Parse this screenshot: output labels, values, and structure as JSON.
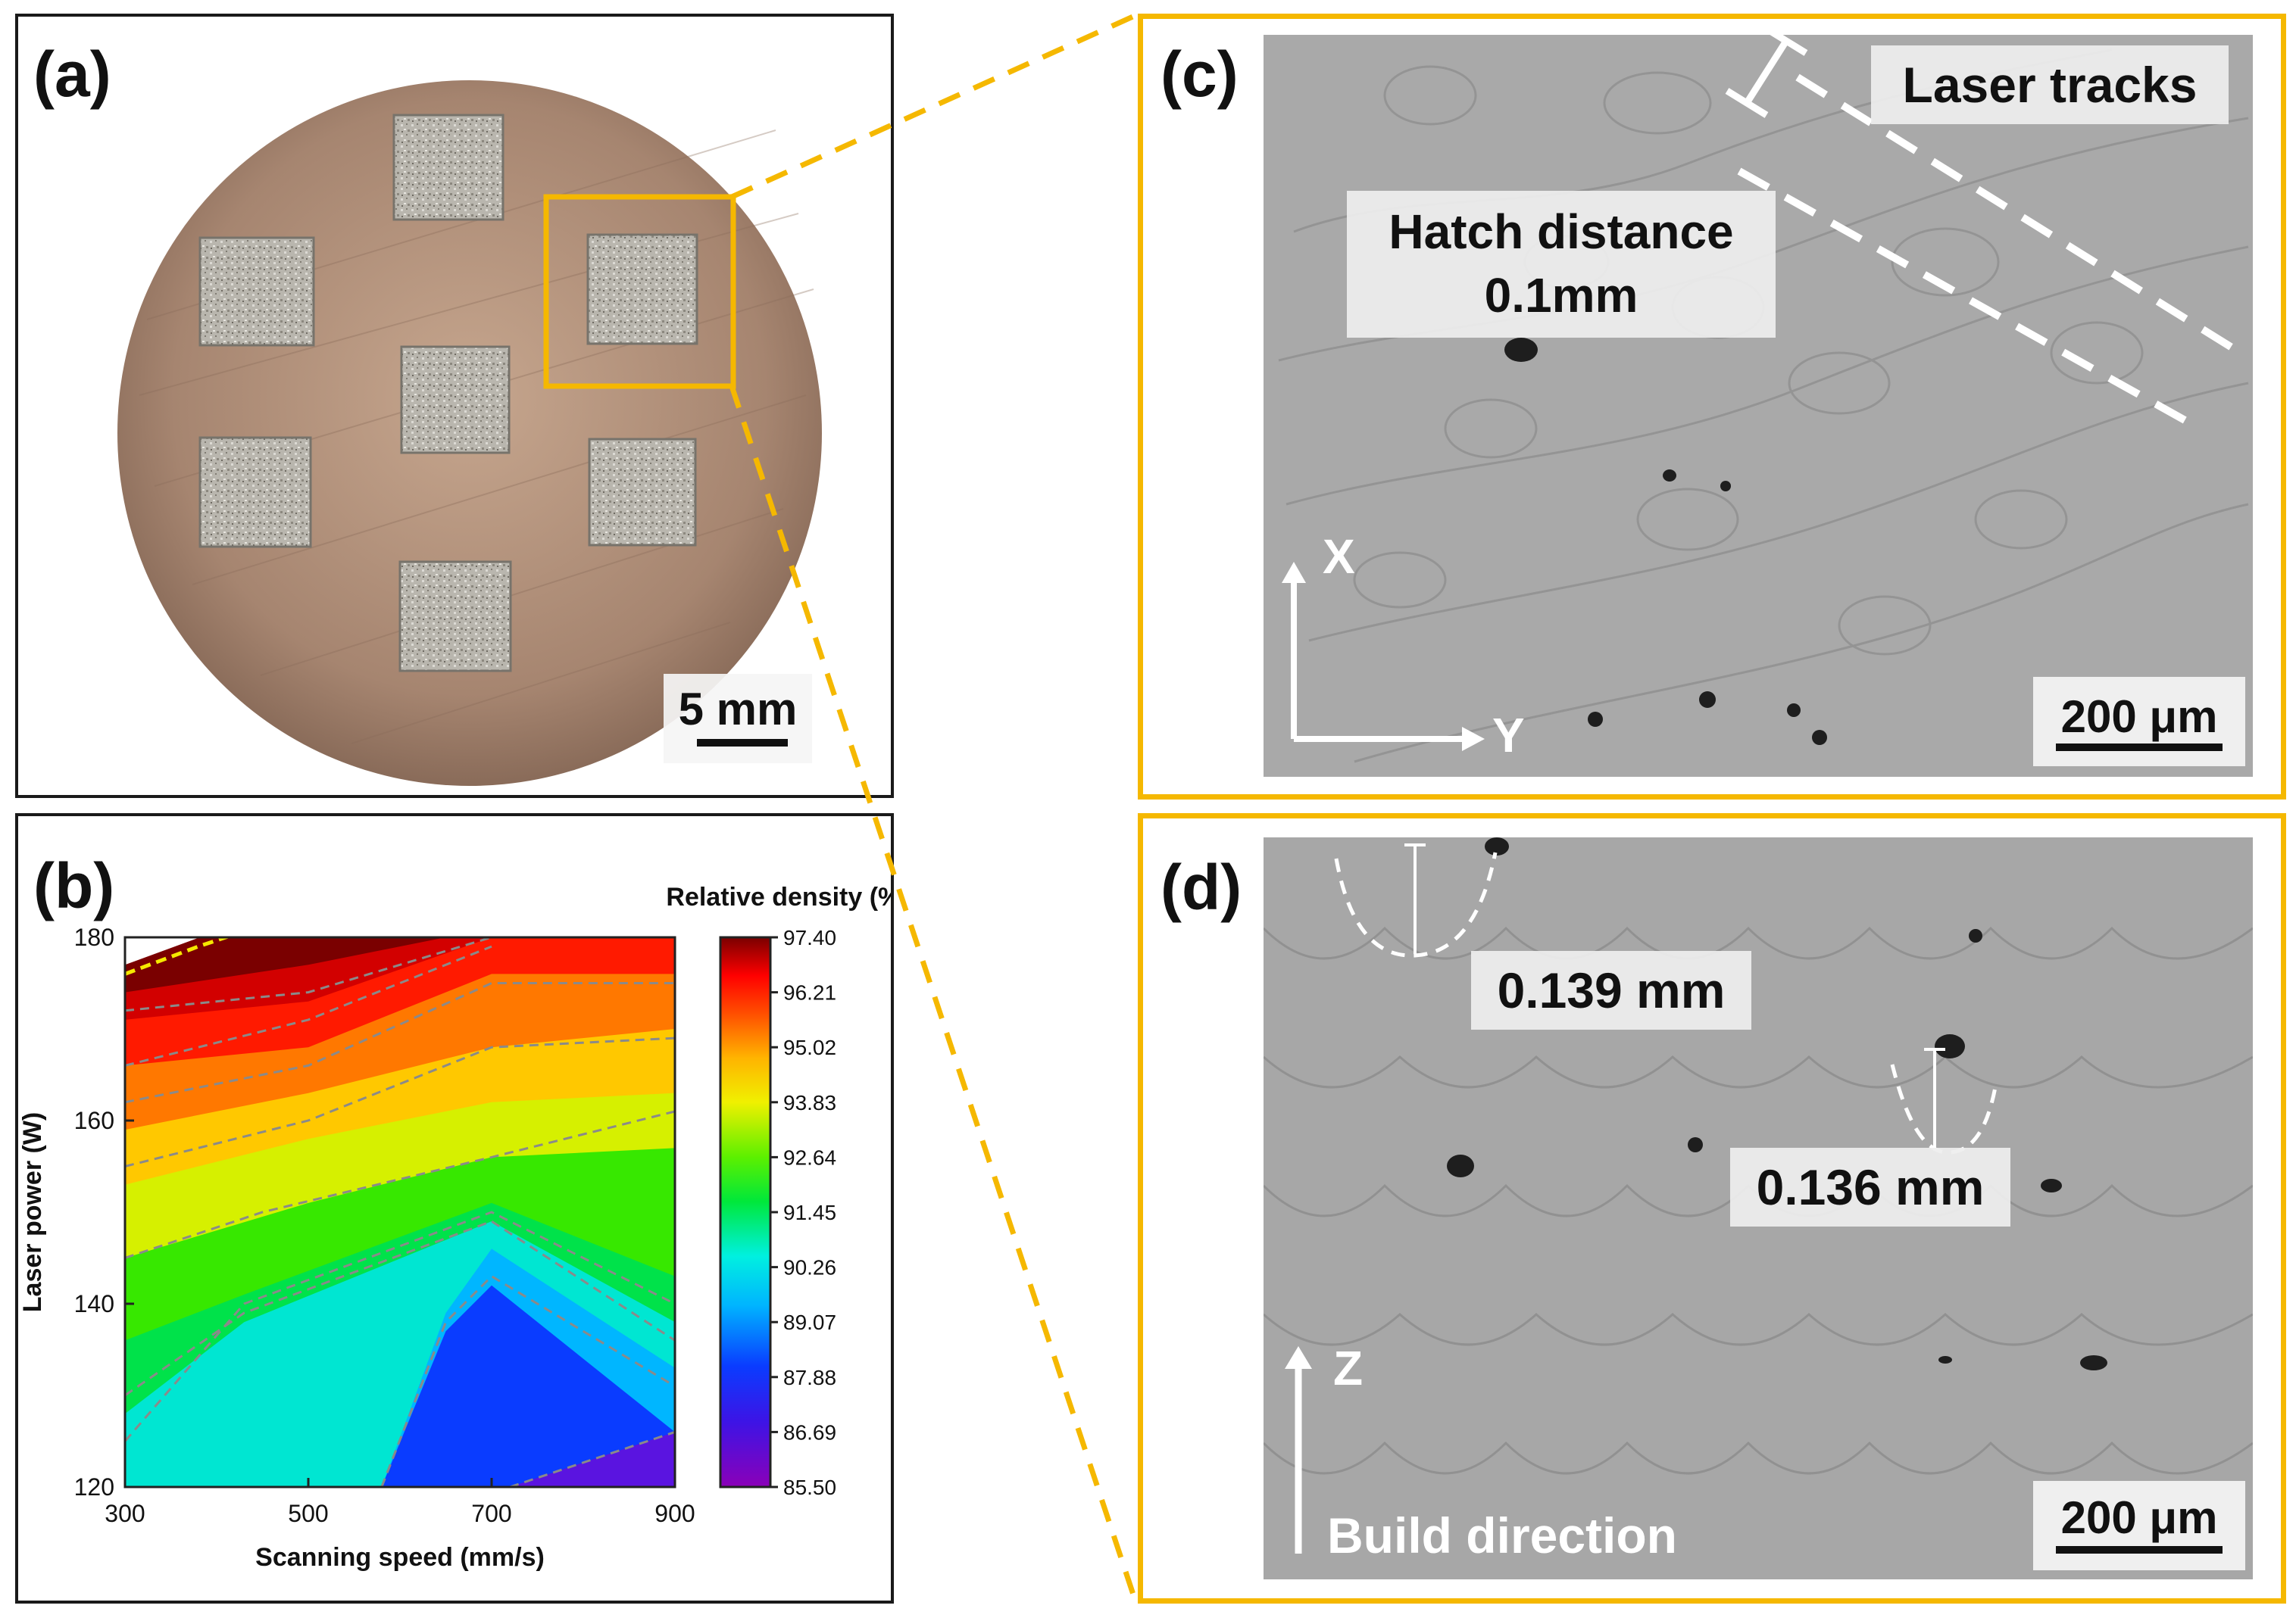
{
  "panels": {
    "a": {
      "label": "(a)",
      "scale_bar": "5 mm"
    },
    "b": {
      "label": "(b)"
    },
    "c": {
      "label": "(c)",
      "laser_tracks": "Laser tracks",
      "hatch_line1": "Hatch distance",
      "hatch_line2": "0.1mm",
      "axis_x": "X",
      "axis_y": "Y",
      "scale_bar": "200 μm"
    },
    "d": {
      "label": "(d)",
      "depth1": "0.139 mm",
      "depth2": "0.136 mm",
      "axis_z": "Z",
      "build_direction": "Build direction",
      "scale_bar": "200 μm"
    }
  },
  "colors": {
    "accent_orange": "#f5b800",
    "frame_black": "#1a1a1a",
    "micrograph_gray": "#aaaaaa"
  },
  "chart_data": {
    "type": "heatmap",
    "xlabel": "Scanning speed (mm/s)",
    "ylabel": "Laser power (W)",
    "colorbar_title": "Relative density (%)",
    "xlim": [
      300,
      900
    ],
    "ylim": [
      120,
      180
    ],
    "x_ticks": [
      "300",
      "500",
      "700",
      "900"
    ],
    "y_ticks": [
      "180",
      "160",
      "140",
      "120"
    ],
    "colorbar_ticks": [
      "97.40",
      "96.21",
      "95.02",
      "93.83",
      "92.64",
      "91.45",
      "90.26",
      "89.07",
      "87.88",
      "86.69",
      "85.50"
    ],
    "colorbar_range": [
      85.5,
      97.4
    ]
  }
}
